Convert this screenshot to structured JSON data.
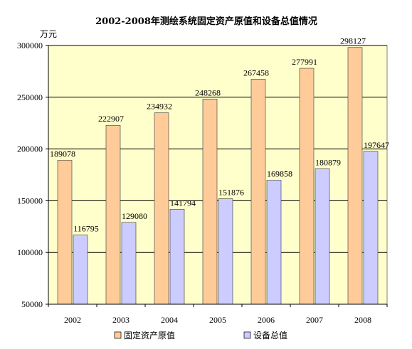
{
  "chart_data": {
    "type": "bar",
    "title": "2002-2008年测绘系统固定资产原值和设备总值情况",
    "ylabel": "万元",
    "xlabel": "",
    "categories": [
      "2002",
      "2003",
      "2004",
      "2005",
      "2006",
      "2007",
      "2008"
    ],
    "series": [
      {
        "name": "固定资产原值",
        "values": [
          189078,
          222907,
          234932,
          248268,
          267458,
          277991,
          298127
        ],
        "color": "#FFCC99"
      },
      {
        "name": "设备总值",
        "values": [
          116795,
          129080,
          141794,
          151876,
          169858,
          180879,
          197647
        ],
        "color": "#CCCCFF"
      }
    ],
    "ylim": [
      50000,
      300000
    ],
    "yticks": [
      50000,
      100000,
      150000,
      200000,
      250000,
      300000
    ],
    "grid": true,
    "legend": "bottom",
    "plot_background": "#FFFFCC"
  }
}
